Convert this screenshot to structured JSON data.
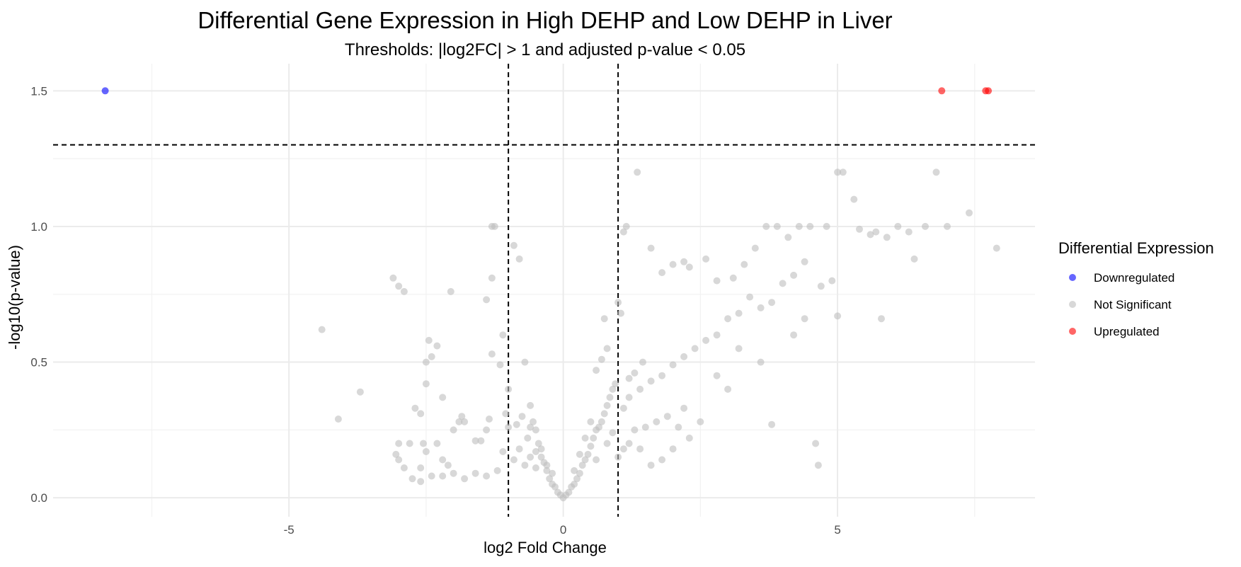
{
  "chart_data": {
    "type": "scatter",
    "title": "Differential Gene Expression in High DEHP and Low DEHP in Liver",
    "subtitle": "Thresholds: |log2FC| > 1 and adjusted p-value < 0.05",
    "xlabel": "log2 Fold Change",
    "ylabel": "-log10(p-value)",
    "xlim": [
      -9.3,
      8.6
    ],
    "ylim": [
      -0.07,
      1.6
    ],
    "x_ticks": [
      -5,
      0,
      5
    ],
    "x_tick_labels": [
      "-5",
      "0",
      "5"
    ],
    "y_ticks": [
      0.0,
      0.5,
      1.0,
      1.5
    ],
    "y_tick_labels": [
      "0.0",
      "0.5",
      "1.0",
      "1.5"
    ],
    "grid": true,
    "thresholds": {
      "vertical": [
        -1,
        1
      ],
      "horizontal": 1.301
    },
    "legend": {
      "title": "Differential Expression",
      "position": "right",
      "entries": [
        {
          "label": "Downregulated",
          "color": "#0000ff"
        },
        {
          "label": "Not Significant",
          "color": "#bebebe"
        },
        {
          "label": "Upregulated",
          "color": "#ff0000"
        }
      ]
    },
    "series": [
      {
        "name": "Downregulated",
        "color": "#0000ff",
        "points": [
          [
            -8.35,
            1.5
          ]
        ]
      },
      {
        "name": "Upregulated",
        "color": "#ff0000",
        "points": [
          [
            6.9,
            1.5
          ],
          [
            7.7,
            1.5
          ],
          [
            7.75,
            1.5
          ]
        ]
      },
      {
        "name": "Not Significant",
        "color": "#bebebe",
        "points": [
          [
            -4.4,
            0.62
          ],
          [
            -4.1,
            0.29
          ],
          [
            -3.7,
            0.39
          ],
          [
            -3.1,
            0.81
          ],
          [
            -3.0,
            0.78
          ],
          [
            -2.9,
            0.76
          ],
          [
            -3.0,
            0.2
          ],
          [
            -3.05,
            0.16
          ],
          [
            -3.0,
            0.14
          ],
          [
            -2.9,
            0.11
          ],
          [
            -2.8,
            0.2
          ],
          [
            -2.7,
            0.33
          ],
          [
            -2.6,
            0.31
          ],
          [
            -2.55,
            0.2
          ],
          [
            -2.5,
            0.17
          ],
          [
            -2.3,
            0.2
          ],
          [
            -2.2,
            0.14
          ],
          [
            -2.1,
            0.12
          ],
          [
            -2.75,
            0.07
          ],
          [
            -2.5,
            0.42
          ],
          [
            -2.6,
            0.11
          ],
          [
            -2.45,
            0.58
          ],
          [
            -2.3,
            0.56
          ],
          [
            -2.4,
            0.52
          ],
          [
            -2.5,
            0.5
          ],
          [
            -2.2,
            0.37
          ],
          [
            -2.0,
            0.25
          ],
          [
            -2.05,
            0.76
          ],
          [
            -1.9,
            0.28
          ],
          [
            -1.8,
            0.28
          ],
          [
            -1.85,
            0.3
          ],
          [
            -1.6,
            0.21
          ],
          [
            -1.5,
            0.21
          ],
          [
            -1.4,
            0.73
          ],
          [
            -1.3,
            0.81
          ],
          [
            -1.4,
            0.25
          ],
          [
            -1.35,
            0.29
          ],
          [
            -1.25,
            1.0
          ],
          [
            -1.3,
            1.0
          ],
          [
            -1.3,
            0.53
          ],
          [
            -1.15,
            0.49
          ],
          [
            -1.0,
            0.26
          ],
          [
            -1.05,
            0.31
          ],
          [
            -1.1,
            0.6
          ],
          [
            -1.0,
            0.4
          ],
          [
            -0.9,
            0.93
          ],
          [
            -0.85,
            0.27
          ],
          [
            -0.8,
            0.88
          ],
          [
            -0.75,
            0.3
          ],
          [
            -0.7,
            0.5
          ],
          [
            -0.65,
            0.22
          ],
          [
            -0.6,
            0.26
          ],
          [
            -0.55,
            0.28
          ],
          [
            -0.6,
            0.34
          ],
          [
            -0.5,
            0.25
          ],
          [
            -0.45,
            0.2
          ],
          [
            -0.5,
            0.17
          ],
          [
            -0.4,
            0.15
          ],
          [
            -0.35,
            0.13
          ],
          [
            -0.3,
            0.1
          ],
          [
            -0.25,
            0.07
          ],
          [
            -0.2,
            0.05
          ],
          [
            -0.15,
            0.04
          ],
          [
            -0.1,
            0.02
          ],
          [
            -0.05,
            0.01
          ],
          [
            0.0,
            0.0
          ],
          [
            0.05,
            0.01
          ],
          [
            0.1,
            0.02
          ],
          [
            0.15,
            0.04
          ],
          [
            0.2,
            0.05
          ],
          [
            0.25,
            0.07
          ],
          [
            0.3,
            0.09
          ],
          [
            0.35,
            0.12
          ],
          [
            0.4,
            0.14
          ],
          [
            0.45,
            0.16
          ],
          [
            0.5,
            0.19
          ],
          [
            0.55,
            0.22
          ],
          [
            0.6,
            0.25
          ],
          [
            0.65,
            0.26
          ],
          [
            0.7,
            0.28
          ],
          [
            0.75,
            0.31
          ],
          [
            0.8,
            0.34
          ],
          [
            0.85,
            0.37
          ],
          [
            0.9,
            0.4
          ],
          [
            0.95,
            0.42
          ],
          [
            0.6,
            0.47
          ],
          [
            0.7,
            0.51
          ],
          [
            0.8,
            0.55
          ],
          [
            0.75,
            0.66
          ],
          [
            1.05,
            0.68
          ],
          [
            1.0,
            0.72
          ],
          [
            1.1,
            0.98
          ],
          [
            1.15,
            1.0
          ],
          [
            1.35,
            1.2
          ],
          [
            1.2,
            0.44
          ],
          [
            1.3,
            0.46
          ],
          [
            1.45,
            0.5
          ],
          [
            1.6,
            0.92
          ],
          [
            1.8,
            0.83
          ],
          [
            2.0,
            0.86
          ],
          [
            2.2,
            0.87
          ],
          [
            2.3,
            0.85
          ],
          [
            2.6,
            0.88
          ],
          [
            2.8,
            0.8
          ],
          [
            3.1,
            0.81
          ],
          [
            3.3,
            0.86
          ],
          [
            3.5,
            0.92
          ],
          [
            3.7,
            1.0
          ],
          [
            3.9,
            1.0
          ],
          [
            4.1,
            0.96
          ],
          [
            4.3,
            1.0
          ],
          [
            4.5,
            1.0
          ],
          [
            4.8,
            1.0
          ],
          [
            5.0,
            1.2
          ],
          [
            5.1,
            1.2
          ],
          [
            5.3,
            1.1
          ],
          [
            5.4,
            0.99
          ],
          [
            5.6,
            0.97
          ],
          [
            5.7,
            0.98
          ],
          [
            5.9,
            0.96
          ],
          [
            6.1,
            1.0
          ],
          [
            6.3,
            0.98
          ],
          [
            6.6,
            1.0
          ],
          [
            6.8,
            1.2
          ],
          [
            7.0,
            1.0
          ],
          [
            7.4,
            1.05
          ],
          [
            7.9,
            0.92
          ],
          [
            6.4,
            0.88
          ],
          [
            5.8,
            0.66
          ],
          [
            5.0,
            0.67
          ],
          [
            4.9,
            0.8
          ],
          [
            4.7,
            0.78
          ],
          [
            4.4,
            0.87
          ],
          [
            4.2,
            0.82
          ],
          [
            4.0,
            0.79
          ],
          [
            3.8,
            0.72
          ],
          [
            3.6,
            0.7
          ],
          [
            3.4,
            0.74
          ],
          [
            3.2,
            0.68
          ],
          [
            3.0,
            0.66
          ],
          [
            2.8,
            0.6
          ],
          [
            2.6,
            0.58
          ],
          [
            2.4,
            0.55
          ],
          [
            2.2,
            0.52
          ],
          [
            2.0,
            0.49
          ],
          [
            1.8,
            0.45
          ],
          [
            1.6,
            0.43
          ],
          [
            1.4,
            0.4
          ],
          [
            1.2,
            0.37
          ],
          [
            1.1,
            0.33
          ],
          [
            3.8,
            0.27
          ],
          [
            3.6,
            0.5
          ],
          [
            4.2,
            0.6
          ],
          [
            4.4,
            0.66
          ],
          [
            4.6,
            0.2
          ],
          [
            4.65,
            0.12
          ],
          [
            2.5,
            0.28
          ],
          [
            2.8,
            0.45
          ],
          [
            3.0,
            0.4
          ],
          [
            3.2,
            0.55
          ],
          [
            2.2,
            0.33
          ],
          [
            1.9,
            0.3
          ],
          [
            1.7,
            0.28
          ],
          [
            1.5,
            0.26
          ],
          [
            1.3,
            0.25
          ],
          [
            1.2,
            0.2
          ],
          [
            1.1,
            0.18
          ],
          [
            1.0,
            0.15
          ],
          [
            1.4,
            0.18
          ],
          [
            1.6,
            0.12
          ],
          [
            1.8,
            0.14
          ],
          [
            2.0,
            0.18
          ],
          [
            2.3,
            0.22
          ],
          [
            2.1,
            0.26
          ],
          [
            -0.2,
            0.09
          ],
          [
            -0.3,
            0.12
          ],
          [
            -0.4,
            0.18
          ],
          [
            -0.6,
            0.15
          ],
          [
            -0.7,
            0.12
          ],
          [
            -0.9,
            0.14
          ],
          [
            -1.2,
            0.1
          ],
          [
            -1.4,
            0.08
          ],
          [
            -1.6,
            0.09
          ],
          [
            -1.8,
            0.07
          ],
          [
            -2.0,
            0.09
          ],
          [
            -2.2,
            0.08
          ],
          [
            -2.4,
            0.08
          ],
          [
            -2.6,
            0.06
          ],
          [
            -1.1,
            0.17
          ],
          [
            -0.8,
            0.18
          ],
          [
            -0.5,
            0.11
          ],
          [
            0.3,
            0.16
          ],
          [
            0.5,
            0.28
          ],
          [
            0.9,
            0.24
          ],
          [
            0.4,
            0.22
          ],
          [
            0.2,
            0.1
          ],
          [
            0.6,
            0.14
          ],
          [
            0.8,
            0.2
          ]
        ]
      }
    ]
  }
}
